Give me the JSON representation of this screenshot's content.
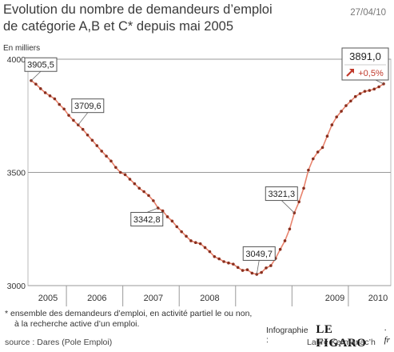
{
  "title_line1": "Evolution du nombre de demandeurs d’emploi",
  "title_line2": "de catégorie A,B et C* depuis mai 2005",
  "date": "27/04/10",
  "unit": "En milliers",
  "footnote_line1": "* ensemble des demandeurs d’emploi, en activité partiel  le ou non,",
  "footnote_line2": "à la recherche active d’un emploi.",
  "credit_label": "Infographie :",
  "logo_text": "LE FIGARO",
  "logo_suffix": "· fr",
  "source": "source : Dares (Pole Emploi)",
  "author": "Laure Kermanac’h",
  "colors": {
    "line": "#e8836d",
    "point": "#8a2f1e",
    "arrow": "#c0392b"
  },
  "chart_data": {
    "type": "line",
    "title": "Evolution du nombre de demandeurs d’emploi de catégorie A,B et C* depuis mai 2005",
    "ylabel": "En milliers",
    "ylim": [
      3000,
      4000
    ],
    "yticks": [
      3000,
      3500,
      4000
    ],
    "xticks": [
      "2005",
      "2006",
      "2007",
      "2008",
      "2009",
      "2010"
    ],
    "start": "2005-05",
    "end": "2010-03",
    "grid": "horizontal",
    "values": [
      3905.5,
      3890,
      3870,
      3852,
      3838,
      3825,
      3800,
      3780,
      3752,
      3730,
      3709.6,
      3690,
      3665,
      3642,
      3618,
      3594,
      3572,
      3550,
      3522,
      3500,
      3490,
      3470,
      3450,
      3430,
      3415,
      3398,
      3375,
      3342.8,
      3330,
      3304,
      3285,
      3260,
      3238,
      3218,
      3198,
      3190,
      3185,
      3168,
      3150,
      3128,
      3118,
      3106,
      3100,
      3095,
      3080,
      3067,
      3070,
      3055,
      3049.7,
      3058,
      3078,
      3088,
      3120,
      3160,
      3198,
      3250,
      3321.3,
      3370,
      3430,
      3510,
      3560,
      3590,
      3610,
      3660,
      3710,
      3745,
      3770,
      3795,
      3815,
      3835,
      3848,
      3858,
      3862,
      3868,
      3878,
      3891.0
    ],
    "annotations": [
      {
        "label": "3905,5",
        "index": 0
      },
      {
        "label": "3709,6",
        "index": 10
      },
      {
        "label": "3342,8",
        "index": 27
      },
      {
        "label": "3049,7",
        "index": 48
      },
      {
        "label": "3321,3",
        "index": 56
      }
    ],
    "last_value": {
      "label": "3891,0",
      "change": "+0,5%"
    }
  }
}
